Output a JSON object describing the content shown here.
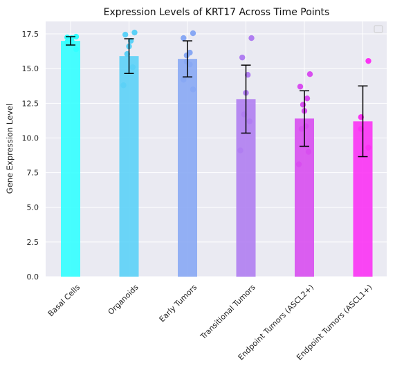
{
  "chart_data": {
    "type": "bar",
    "title": "Expression Levels of KRT17 Across Time Points",
    "xlabel": "",
    "ylabel": "Gene Expression Level",
    "ylim": [
      0,
      18.4
    ],
    "yticks": [
      "0.0",
      "2.5",
      "5.0",
      "7.5",
      "10.0",
      "12.5",
      "15.0",
      "17.5"
    ],
    "grid": true,
    "legend": "top-right (empty)",
    "categories": [
      "Basal Cells",
      "Organoids",
      "Early Tumors",
      "Transitional Tumors",
      "Endpoint Tumors (ASCL2+)",
      "Endpoint Tumors (ASCL1+)"
    ],
    "values": [
      17.0,
      15.9,
      15.7,
      12.8,
      11.4,
      11.2
    ],
    "errors": [
      0.3,
      1.25,
      1.3,
      2.45,
      2.0,
      2.55
    ],
    "points": [
      [
        17.3,
        17.25,
        17.2,
        16.95,
        16.9,
        16.4
      ],
      [
        17.6,
        17.45,
        17.0,
        16.6,
        16.05,
        15.1,
        13.8
      ],
      [
        17.55,
        17.2,
        16.15,
        15.95,
        15.5,
        15.3,
        14.2,
        13.5
      ],
      [
        17.2,
        15.8,
        14.55,
        13.25,
        11.7,
        11.2,
        9.1
      ],
      [
        14.6,
        13.7,
        12.85,
        12.4,
        11.95,
        10.85,
        10.65,
        9.0,
        8.1
      ],
      [
        15.55,
        11.5,
        10.65,
        9.3
      ]
    ],
    "colors": [
      "#33ffff",
      "#5cd1f7",
      "#88a8f4",
      "#b07ef1",
      "#d84ef0",
      "#fb33f4"
    ]
  }
}
